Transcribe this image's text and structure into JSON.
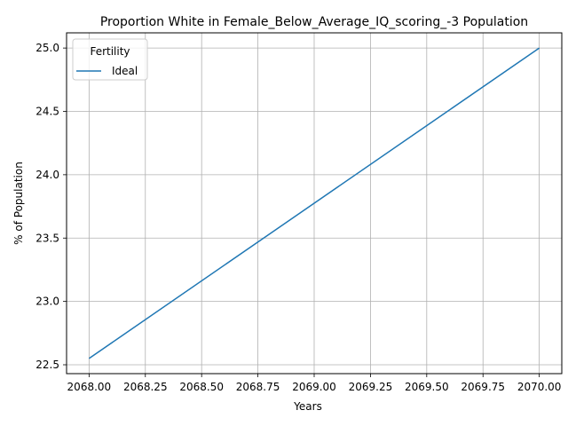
{
  "chart_data": {
    "type": "line",
    "title": "Proportion White in Female_Below_Average_IQ_scoring_-3 Population",
    "xlabel": "Years",
    "ylabel": "% of Population",
    "xlim": [
      2067.9,
      2070.1
    ],
    "ylim": [
      22.43,
      25.12
    ],
    "xticks": [
      2068.0,
      2068.25,
      2068.5,
      2068.75,
      2069.0,
      2069.25,
      2069.5,
      2069.75,
      2070.0
    ],
    "xtick_labels": [
      "2068.00",
      "2068.25",
      "2068.50",
      "2068.75",
      "2069.00",
      "2069.25",
      "2069.50",
      "2069.75",
      "2070.00"
    ],
    "yticks": [
      22.5,
      23.0,
      23.5,
      24.0,
      24.5,
      25.0
    ],
    "ytick_labels": [
      "22.5",
      "23.0",
      "23.5",
      "24.0",
      "24.5",
      "25.0"
    ],
    "grid": true,
    "legend": {
      "title": "Fertility",
      "placement": "upper-left"
    },
    "series": [
      {
        "name": "Ideal",
        "color": "#1f77b4",
        "x": [
          2068,
          2070
        ],
        "y": [
          22.55,
          25.0
        ]
      }
    ]
  }
}
